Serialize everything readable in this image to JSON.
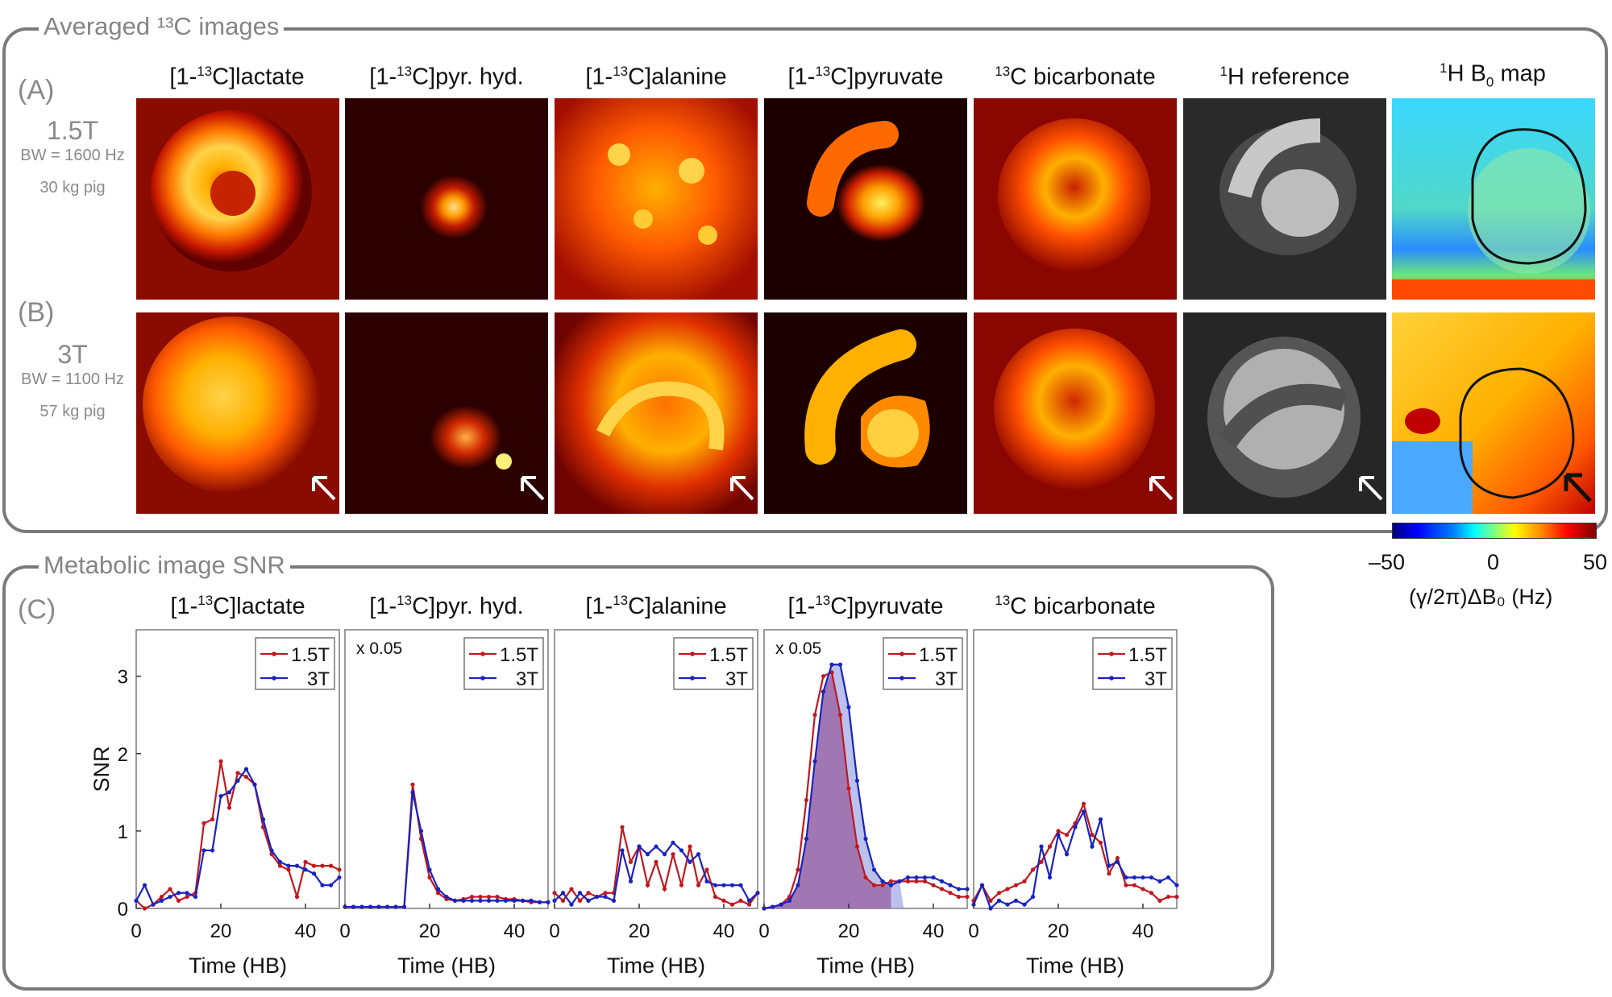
{
  "sections": {
    "top_title": "Averaged ¹³C images",
    "bottom_title": "Metabolic image SNR"
  },
  "rows": {
    "a": {
      "letter": "(A)",
      "field": "1.5T",
      "bw": "BW = 1600 Hz",
      "subject": "30 kg pig"
    },
    "b": {
      "letter": "(B)",
      "field": "3T",
      "bw": "BW = 1100 Hz",
      "subject": "57 kg pig"
    },
    "c": {
      "letter": "(C)"
    }
  },
  "image_columns": [
    {
      "pre": "[1-",
      "sup": "13",
      "post": "C]lactate"
    },
    {
      "pre": "[1-",
      "sup": "13",
      "post": "C]pyr. hyd."
    },
    {
      "pre": "[1-",
      "sup": "13",
      "post": "C]alanine"
    },
    {
      "pre": "[1-",
      "sup": "13",
      "post": "C]pyruvate"
    },
    {
      "pre": "",
      "sup": "13",
      "post": "C bicarbonate"
    },
    {
      "pre": "",
      "sup": "1",
      "post": "H reference"
    },
    {
      "pre": "",
      "sup": "1",
      "post": "H B",
      "sub": "0",
      "post2": " map"
    }
  ],
  "colorbar": {
    "min": "–50",
    "mid": "0",
    "max": "50",
    "label": "(γ/2π)ΔB₀ (Hz)",
    "colormap": "jet"
  },
  "colors": {
    "frame": "#7a7a7a",
    "series_15T": "#c0181e",
    "series_3T": "#1a22c0",
    "fill_purple": "#9b6aa8",
    "fill_blue": "#9da6e6"
  },
  "chart_data": [
    {
      "type": "line",
      "title": "[1-13C]lactate",
      "xlabel": "Time (HB)",
      "ylabel": "SNR",
      "xlim": [
        0,
        48
      ],
      "ylim": [
        0,
        3.6
      ],
      "xticks": [
        0,
        20,
        40
      ],
      "yticks": [
        0,
        1,
        2,
        3
      ],
      "annotation": "",
      "legend": "top-right",
      "series": [
        {
          "name": "1.5T",
          "x": [
            0,
            2,
            4,
            6,
            8,
            10,
            12,
            14,
            16,
            18,
            20,
            22,
            24,
            26,
            28,
            30,
            32,
            34,
            36,
            38,
            40,
            42,
            44,
            46,
            48
          ],
          "y": [
            0.1,
            0.0,
            0.05,
            0.15,
            0.25,
            0.1,
            0.15,
            0.2,
            1.1,
            1.15,
            1.9,
            1.3,
            1.75,
            1.7,
            1.6,
            1.05,
            0.7,
            0.55,
            0.5,
            0.15,
            0.6,
            0.55,
            0.55,
            0.55,
            0.5
          ]
        },
        {
          "name": "3T",
          "x": [
            0,
            2,
            4,
            6,
            8,
            10,
            12,
            14,
            16,
            18,
            20,
            22,
            24,
            26,
            28,
            30,
            32,
            34,
            36,
            38,
            40,
            42,
            44,
            46,
            48
          ],
          "y": [
            0.1,
            0.3,
            0.05,
            0.1,
            0.15,
            0.2,
            0.2,
            0.15,
            0.75,
            0.75,
            1.45,
            1.5,
            1.65,
            1.8,
            1.6,
            1.15,
            0.75,
            0.6,
            0.55,
            0.55,
            0.5,
            0.45,
            0.3,
            0.3,
            0.4
          ]
        }
      ]
    },
    {
      "type": "line",
      "title": "[1-13C]pyr. hyd.",
      "xlabel": "Time (HB)",
      "ylabel": "",
      "xlim": [
        0,
        48
      ],
      "ylim": [
        0,
        3.6
      ],
      "xticks": [
        0,
        20,
        40
      ],
      "yticks": [],
      "annotation": "x 0.05",
      "legend": "top-right",
      "series": [
        {
          "name": "1.5T",
          "x": [
            0,
            2,
            4,
            6,
            8,
            10,
            12,
            14,
            16,
            18,
            20,
            22,
            24,
            26,
            28,
            30,
            32,
            34,
            36,
            38,
            40,
            42,
            44,
            46,
            48
          ],
          "y": [
            0.02,
            0.02,
            0.02,
            0.02,
            0.02,
            0.02,
            0.02,
            0.02,
            1.6,
            0.9,
            0.4,
            0.2,
            0.12,
            0.1,
            0.12,
            0.15,
            0.15,
            0.15,
            0.15,
            0.12,
            0.12,
            0.1,
            0.08,
            0.08,
            0.08
          ]
        },
        {
          "name": "3T",
          "x": [
            0,
            2,
            4,
            6,
            8,
            10,
            12,
            14,
            16,
            18,
            20,
            22,
            24,
            26,
            28,
            30,
            32,
            34,
            36,
            38,
            40,
            42,
            44,
            46,
            48
          ],
          "y": [
            0.02,
            0.02,
            0.02,
            0.02,
            0.02,
            0.02,
            0.02,
            0.02,
            1.5,
            1.0,
            0.5,
            0.25,
            0.15,
            0.1,
            0.1,
            0.1,
            0.1,
            0.1,
            0.1,
            0.1,
            0.1,
            0.1,
            0.1,
            0.08,
            0.08
          ]
        }
      ]
    },
    {
      "type": "line",
      "title": "[1-13C]alanine",
      "xlabel": "Time (HB)",
      "ylabel": "",
      "xlim": [
        0,
        48
      ],
      "ylim": [
        0,
        3.6
      ],
      "xticks": [
        0,
        20,
        40
      ],
      "yticks": [],
      "annotation": "",
      "legend": "top-right",
      "series": [
        {
          "name": "1.5T",
          "x": [
            0,
            2,
            4,
            6,
            8,
            10,
            12,
            14,
            16,
            18,
            20,
            22,
            24,
            26,
            28,
            30,
            32,
            34,
            36,
            38,
            40,
            42,
            44,
            46,
            48
          ],
          "y": [
            0.2,
            0.1,
            0.25,
            0.1,
            0.2,
            0.15,
            0.2,
            0.2,
            1.05,
            0.6,
            0.8,
            0.3,
            0.6,
            0.25,
            0.7,
            0.3,
            0.8,
            0.3,
            0.5,
            0.15,
            0.1,
            0.05,
            0.1,
            0.05,
            0.2
          ]
        },
        {
          "name": "3T",
          "x": [
            0,
            2,
            4,
            6,
            8,
            10,
            12,
            14,
            16,
            18,
            20,
            22,
            24,
            26,
            28,
            30,
            32,
            34,
            36,
            38,
            40,
            42,
            44,
            46,
            48
          ],
          "y": [
            0.1,
            0.2,
            0.05,
            0.2,
            0.1,
            0.15,
            0.15,
            0.1,
            0.75,
            0.35,
            0.8,
            0.7,
            0.8,
            0.7,
            0.85,
            0.75,
            0.6,
            0.7,
            0.35,
            0.3,
            0.3,
            0.3,
            0.3,
            0.1,
            0.2
          ]
        }
      ]
    },
    {
      "type": "area",
      "title": "[1-13C]pyruvate",
      "xlabel": "Time (HB)",
      "ylabel": "",
      "xlim": [
        0,
        48
      ],
      "ylim": [
        0,
        3.6
      ],
      "xticks": [
        0,
        20,
        40
      ],
      "yticks": [],
      "annotation": "x 0.05",
      "legend": "top-right",
      "series": [
        {
          "name": "1.5T",
          "x": [
            0,
            2,
            4,
            6,
            8,
            10,
            12,
            14,
            16,
            18,
            20,
            22,
            24,
            26,
            28,
            30,
            32,
            34,
            36,
            38,
            40,
            42,
            44,
            46,
            48
          ],
          "y": [
            0.0,
            0.02,
            0.05,
            0.15,
            0.5,
            1.4,
            2.5,
            3.0,
            3.05,
            2.5,
            1.55,
            0.8,
            0.4,
            0.3,
            0.3,
            0.35,
            0.35,
            0.35,
            0.35,
            0.35,
            0.3,
            0.25,
            0.2,
            0.15,
            0.15
          ]
        },
        {
          "name": "3T",
          "x": [
            0,
            2,
            4,
            6,
            8,
            10,
            12,
            14,
            16,
            18,
            20,
            22,
            24,
            26,
            28,
            30,
            32,
            34,
            36,
            38,
            40,
            42,
            44,
            46,
            48
          ],
          "y": [
            0.0,
            0.02,
            0.05,
            0.1,
            0.3,
            0.9,
            1.9,
            2.8,
            3.15,
            3.15,
            2.6,
            1.65,
            0.9,
            0.5,
            0.35,
            0.3,
            0.35,
            0.4,
            0.4,
            0.4,
            0.4,
            0.35,
            0.3,
            0.25,
            0.25
          ]
        }
      ]
    },
    {
      "type": "line",
      "title": "13C bicarbonate",
      "xlabel": "Time (HB)",
      "ylabel": "",
      "xlim": [
        0,
        48
      ],
      "ylim": [
        0,
        3.6
      ],
      "xticks": [
        0,
        20,
        40
      ],
      "yticks": [],
      "annotation": "",
      "legend": "top-right",
      "series": [
        {
          "name": "1.5T",
          "x": [
            0,
            2,
            4,
            6,
            8,
            10,
            12,
            14,
            16,
            18,
            20,
            22,
            24,
            26,
            28,
            30,
            32,
            34,
            36,
            38,
            40,
            42,
            44,
            46,
            48
          ],
          "y": [
            0.1,
            0.3,
            0.1,
            0.2,
            0.25,
            0.3,
            0.35,
            0.5,
            0.6,
            0.8,
            1.0,
            0.95,
            1.1,
            1.35,
            0.95,
            0.85,
            0.45,
            0.65,
            0.3,
            0.3,
            0.25,
            0.2,
            0.1,
            0.15,
            0.15
          ]
        },
        {
          "name": "3T",
          "x": [
            0,
            2,
            4,
            6,
            8,
            10,
            12,
            14,
            16,
            18,
            20,
            22,
            24,
            26,
            28,
            30,
            32,
            34,
            36,
            38,
            40,
            42,
            44,
            46,
            48
          ],
          "y": [
            0.05,
            0.3,
            0.0,
            0.1,
            0.05,
            0.1,
            0.05,
            0.15,
            0.8,
            0.4,
            0.95,
            0.7,
            1.05,
            1.25,
            0.8,
            1.15,
            0.55,
            0.6,
            0.4,
            0.4,
            0.4,
            0.4,
            0.35,
            0.4,
            0.3
          ]
        }
      ]
    }
  ]
}
